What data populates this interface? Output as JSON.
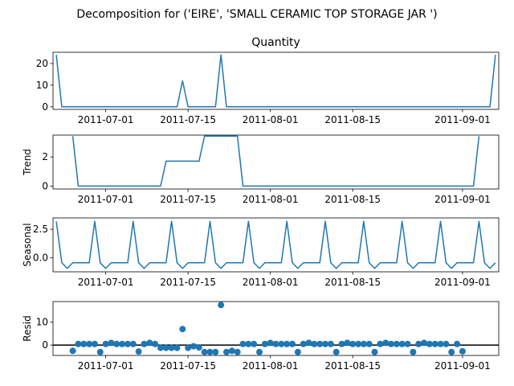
{
  "figure": {
    "suptitle": "Decomposition for ('EIRE', 'SMALL CERAMIC TOP STORAGE JAR ')",
    "line_color": "#1f77b4",
    "marker_color": "#1f77b4",
    "zero_line_color": "#000000"
  },
  "chart_data": [
    {
      "type": "line",
      "title": "Quantity",
      "ylabel": "",
      "xlim": [
        -0.6,
        80.6
      ],
      "ylim": [
        -1.2,
        25.2
      ],
      "yticks": [
        0,
        10,
        20
      ],
      "ytick_labels": [
        "0",
        "10",
        "20"
      ],
      "xtick_positions": [
        9,
        24,
        39,
        54,
        74
      ],
      "xtick_labels": [
        "2011-07-01",
        "2011-07-15",
        "2011-08-01",
        "2011-08-15",
        "2011-09-01"
      ],
      "points": [
        [
          0,
          24
        ],
        [
          1,
          0
        ],
        [
          22,
          0
        ],
        [
          23,
          12
        ],
        [
          24,
          0
        ],
        [
          29,
          0
        ],
        [
          30,
          24
        ],
        [
          31,
          0
        ],
        [
          79,
          0
        ],
        [
          80,
          24
        ]
      ]
    },
    {
      "type": "line",
      "title": "",
      "ylabel": "Trend",
      "xlim": [
        -0.6,
        80.6
      ],
      "ylim": [
        -0.2,
        3.5
      ],
      "yticks": [
        0,
        2
      ],
      "ytick_labels": [
        "0",
        "2"
      ],
      "xtick_positions": [
        9,
        24,
        39,
        54,
        74
      ],
      "xtick_labels": [
        "2011-07-01",
        "2011-07-15",
        "2011-08-01",
        "2011-08-15",
        "2011-09-01"
      ],
      "points": [
        [
          3,
          3.43
        ],
        [
          4,
          0
        ],
        [
          19,
          0
        ],
        [
          20,
          1.71
        ],
        [
          26,
          1.71
        ],
        [
          27,
          3.43
        ],
        [
          33,
          3.43
        ],
        [
          34,
          0
        ],
        [
          76,
          0
        ],
        [
          77,
          3.43
        ]
      ]
    },
    {
      "type": "line",
      "title": "",
      "ylabel": "Seasonal",
      "xlim": [
        -0.6,
        80.6
      ],
      "ylim": [
        -1.25,
        3.5
      ],
      "yticks": [
        0,
        2.5
      ],
      "ytick_labels": [
        "0.0",
        "2.5"
      ],
      "xtick_positions": [
        9,
        24,
        39,
        54,
        74
      ],
      "xtick_labels": [
        "2011-07-01",
        "2011-07-15",
        "2011-08-01",
        "2011-08-15",
        "2011-09-01"
      ],
      "period": 7,
      "pattern": [
        3.2,
        -0.45,
        -0.95,
        -0.45,
        -0.45,
        -0.45,
        -0.45
      ],
      "start_index": 0,
      "n_points": 81
    },
    {
      "type": "scatter",
      "title": "",
      "ylabel": "Resid",
      "xlim": [
        -0.6,
        80.6
      ],
      "ylim": [
        -4.5,
        19
      ],
      "yticks": [
        0,
        10
      ],
      "ytick_labels": [
        "0",
        "10"
      ],
      "xtick_positions": [
        9,
        24,
        39,
        54,
        74
      ],
      "xtick_labels": [
        "2011-07-01",
        "2011-07-15",
        "2011-08-01",
        "2011-08-15",
        "2011-09-01"
      ],
      "zero_line": 0,
      "points": [
        [
          3,
          -2.5
        ],
        [
          4,
          0.5
        ],
        [
          5,
          0.5
        ],
        [
          6,
          0.5
        ],
        [
          7,
          0.5
        ],
        [
          8,
          -3
        ],
        [
          9,
          0.5
        ],
        [
          10,
          1
        ],
        [
          11,
          0.5
        ],
        [
          12,
          0.5
        ],
        [
          13,
          0.5
        ],
        [
          14,
          0.5
        ],
        [
          15,
          -2.8
        ],
        [
          16,
          0.5
        ],
        [
          17,
          1
        ],
        [
          18,
          0.5
        ],
        [
          19,
          -1.2
        ],
        [
          20,
          -1.2
        ],
        [
          21,
          -1.2
        ],
        [
          22,
          -1.2
        ],
        [
          23,
          7
        ],
        [
          24,
          -1.2
        ],
        [
          25,
          -0.5
        ],
        [
          26,
          -1
        ],
        [
          27,
          -3
        ],
        [
          28,
          -3
        ],
        [
          29,
          -3
        ],
        [
          30,
          17.5
        ],
        [
          31,
          -3
        ],
        [
          32,
          -2.5
        ],
        [
          33,
          -3
        ],
        [
          34,
          0.5
        ],
        [
          35,
          0.5
        ],
        [
          36,
          0.5
        ],
        [
          37,
          -3
        ],
        [
          38,
          0.5
        ],
        [
          39,
          1
        ],
        [
          40,
          0.5
        ],
        [
          41,
          0.5
        ],
        [
          42,
          0.5
        ],
        [
          43,
          0.5
        ],
        [
          44,
          -3
        ],
        [
          45,
          0.5
        ],
        [
          46,
          1
        ],
        [
          47,
          0.5
        ],
        [
          48,
          0.5
        ],
        [
          49,
          0.5
        ],
        [
          50,
          0.5
        ],
        [
          51,
          -3
        ],
        [
          52,
          0.5
        ],
        [
          53,
          1
        ],
        [
          54,
          0.5
        ],
        [
          55,
          0.5
        ],
        [
          56,
          0.5
        ],
        [
          57,
          0.5
        ],
        [
          58,
          -3
        ],
        [
          59,
          0.5
        ],
        [
          60,
          1
        ],
        [
          61,
          0.5
        ],
        [
          62,
          0.5
        ],
        [
          63,
          0.5
        ],
        [
          64,
          0.5
        ],
        [
          65,
          -3
        ],
        [
          66,
          0.5
        ],
        [
          67,
          1
        ],
        [
          68,
          0.5
        ],
        [
          69,
          0.5
        ],
        [
          70,
          0.5
        ],
        [
          71,
          0.5
        ],
        [
          72,
          -3
        ],
        [
          73,
          0.5
        ],
        [
          74,
          -2.7
        ]
      ]
    }
  ]
}
